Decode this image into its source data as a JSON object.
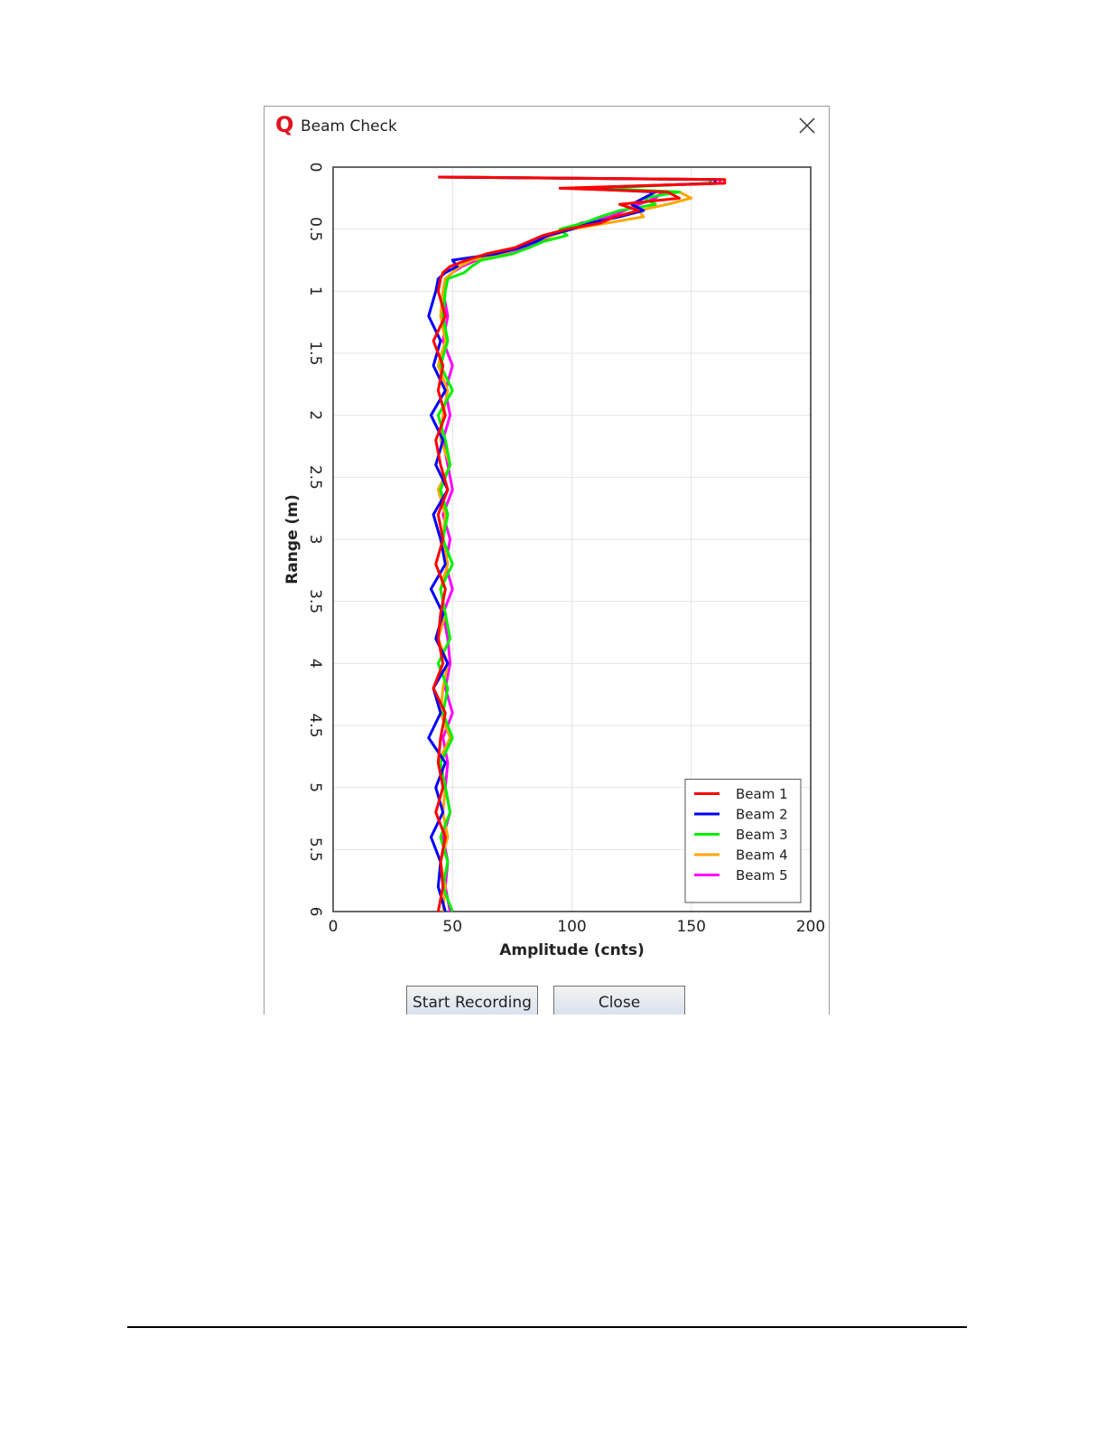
{
  "window": {
    "title": "Beam Check",
    "buttons": [
      "Start Recording",
      "Close"
    ]
  },
  "chart_data": {
    "type": "line",
    "xlabel": "Amplitude (cnts)",
    "ylabel": "Range (m)",
    "xlim": [
      0,
      200
    ],
    "xticks": [
      0,
      50,
      100,
      150,
      200
    ],
    "ylim": [
      0,
      6
    ],
    "yticks": [
      0,
      0.5,
      1,
      1.5,
      2,
      2.5,
      3,
      3.5,
      4,
      4.5,
      5,
      5.5,
      6
    ],
    "y_inverted": true,
    "grid": true,
    "legend": "lower right",
    "y": [
      0.08,
      0.1,
      0.13,
      0.17,
      0.2,
      0.25,
      0.3,
      0.35,
      0.4,
      0.45,
      0.5,
      0.55,
      0.6,
      0.65,
      0.7,
      0.75,
      0.8,
      0.85,
      0.9,
      1.0,
      1.2,
      1.4,
      1.6,
      1.8,
      2.0,
      2.2,
      2.4,
      2.6,
      2.8,
      3.0,
      3.2,
      3.4,
      3.6,
      3.8,
      4.0,
      4.2,
      4.4,
      4.6,
      4.8,
      5.0,
      5.2,
      5.4,
      5.6,
      5.8,
      6.0
    ],
    "series": [
      {
        "name": "Beam 5",
        "color": "#ff00ff",
        "values": [
          45,
          162,
          162,
          102,
          138,
          135,
          128,
          122,
          116,
          104,
          98,
          92,
          86,
          80,
          70,
          60,
          54,
          50,
          47,
          46,
          48,
          46,
          50,
          47,
          49,
          46,
          48,
          50,
          46,
          49,
          47,
          50,
          46,
          48,
          49,
          47,
          50,
          46,
          48,
          47,
          49,
          46,
          48,
          47,
          49
        ]
      },
      {
        "name": "Beam 4",
        "color": "#ffa500",
        "values": [
          46,
          160,
          160,
          105,
          145,
          150,
          140,
          128,
          130,
          115,
          100,
          92,
          84,
          78,
          70,
          58,
          53,
          50,
          47,
          46,
          45,
          47,
          44,
          48,
          46,
          45,
          49,
          44,
          47,
          46,
          48,
          45,
          47,
          44,
          48,
          46,
          45,
          49,
          44,
          47,
          46,
          48,
          45,
          47,
          46
        ]
      },
      {
        "name": "Beam 3",
        "color": "#00ee00",
        "values": [
          45,
          158,
          158,
          110,
          145,
          130,
          135,
          120,
          112,
          105,
          95,
          98,
          88,
          82,
          75,
          62,
          58,
          55,
          48,
          47,
          46,
          48,
          45,
          50,
          44,
          47,
          49,
          45,
          48,
          46,
          50,
          45,
          47,
          49,
          44,
          48,
          46,
          50,
          45,
          47,
          49,
          45,
          48,
          46,
          50
        ]
      },
      {
        "name": "Beam 2",
        "color": "#0000ff",
        "values": [
          44,
          160,
          160,
          100,
          135,
          130,
          125,
          130,
          120,
          108,
          100,
          90,
          85,
          78,
          68,
          50,
          52,
          47,
          44,
          43,
          40,
          45,
          42,
          47,
          41,
          46,
          43,
          48,
          42,
          45,
          47,
          41,
          46,
          43,
          48,
          42,
          45,
          40,
          47,
          43,
          46,
          41,
          45,
          44,
          47
        ]
      },
      {
        "name": "Beam 1",
        "color": "#ff0000",
        "values": [
          44,
          164,
          164,
          95,
          140,
          145,
          120,
          128,
          118,
          112,
          98,
          88,
          82,
          76,
          64,
          56,
          49,
          46,
          45,
          44,
          47,
          42,
          46,
          44,
          47,
          43,
          45,
          48,
          44,
          46,
          43,
          47,
          45,
          44,
          46,
          42,
          47,
          45,
          44,
          46,
          43,
          47,
          45,
          46,
          44
        ]
      }
    ]
  }
}
